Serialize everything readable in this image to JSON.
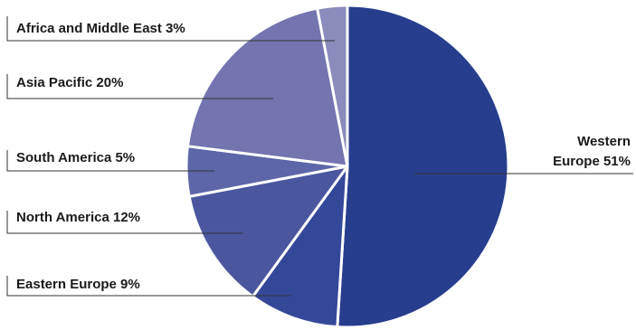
{
  "chart_data": {
    "type": "pie",
    "slices": [
      {
        "name": "Western Europe",
        "value": 51,
        "color": "#273e8e",
        "label_lines": [
          "Western",
          "Europe"
        ],
        "pct": "51%"
      },
      {
        "name": "Eastern Europe",
        "value": 9,
        "color": "#34489a",
        "label_lines": [
          "Eastern Europe"
        ],
        "pct": "9%"
      },
      {
        "name": "North America",
        "value": 12,
        "color": "#4a579f",
        "label_lines": [
          "North America"
        ],
        "pct": "12%"
      },
      {
        "name": "South America",
        "value": 5,
        "color": "#5d66a8",
        "label_lines": [
          "South America"
        ],
        "pct": "5%"
      },
      {
        "name": "Asia Pacific",
        "value": 20,
        "color": "#7374b0",
        "label_lines": [
          "Asia Pacific"
        ],
        "pct": "20%"
      },
      {
        "name": "Africa and Middle East",
        "value": 3,
        "color": "#8b8bbc",
        "label_lines": [
          "Africa and Middle East"
        ],
        "pct": "3%"
      }
    ]
  }
}
